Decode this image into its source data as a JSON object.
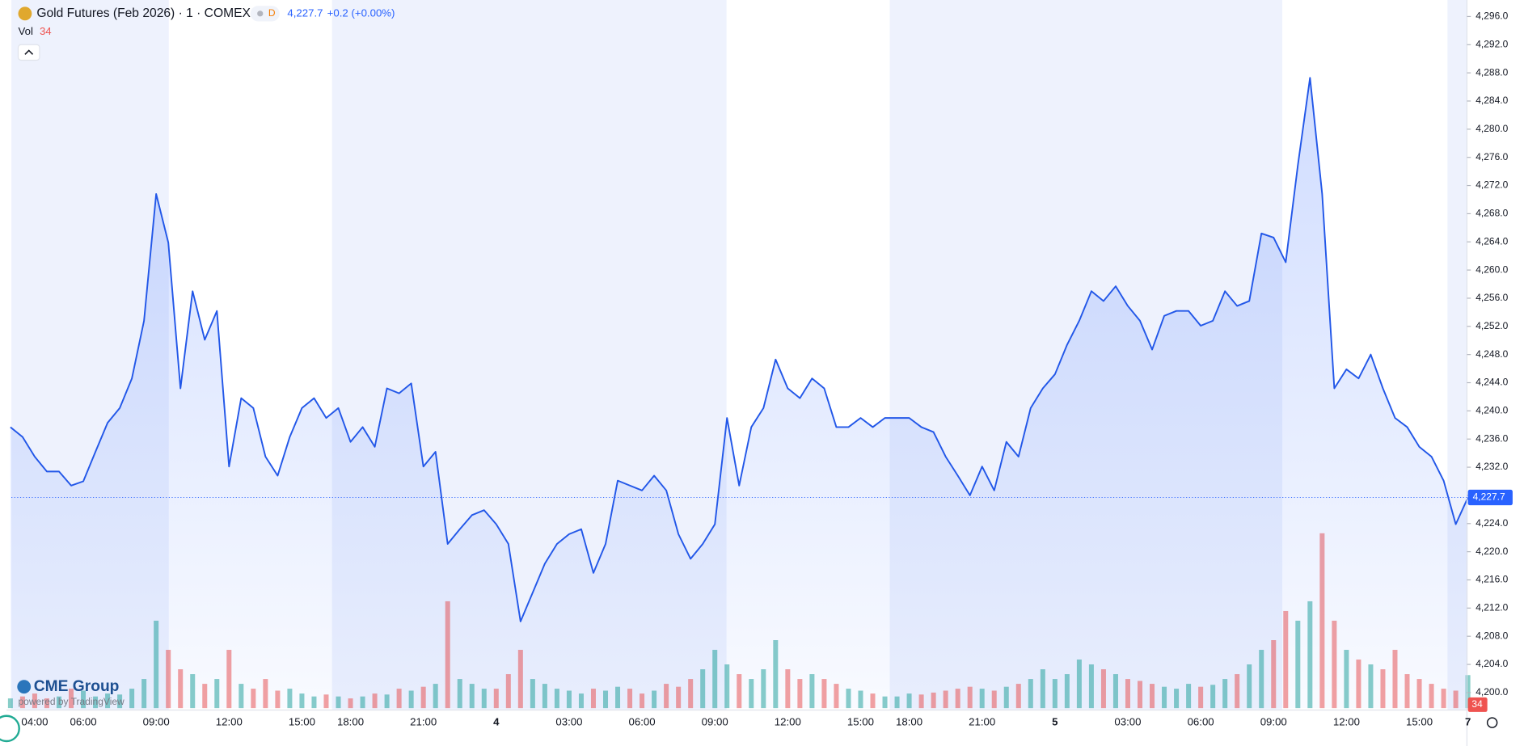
{
  "chart_data": {
    "type": "line",
    "title": "Gold Futures (Feb 2026) · 1 · COMEX",
    "badge": "D",
    "last_price": {
      "value": 4227.7,
      "label": "4,227.7"
    },
    "change": "+0.2 (+0.00%)",
    "volume_name": "Vol",
    "branding": {
      "logo": "CME Group",
      "powered": "powered by TradingView"
    },
    "color": "#2257e8",
    "volume_colors": {
      "up": "#26a69a",
      "down": "#ef5350"
    },
    "categories": [
      null,
      null,
      "04:00",
      null,
      null,
      null,
      "06:00",
      null,
      null,
      null,
      null,
      null,
      "09:00",
      null,
      null,
      null,
      null,
      null,
      "12:00",
      null,
      null,
      null,
      null,
      null,
      "15:00",
      null,
      null,
      null,
      "18:00",
      null,
      null,
      null,
      null,
      null,
      "21:00",
      null,
      null,
      null,
      null,
      null,
      "4",
      null,
      null,
      null,
      null,
      null,
      "03:00",
      null,
      null,
      null,
      null,
      null,
      "06:00",
      null,
      null,
      null,
      null,
      null,
      "09:00",
      null,
      null,
      null,
      null,
      null,
      "12:00",
      null,
      null,
      null,
      null,
      null,
      "15:00",
      null,
      null,
      null,
      "18:00",
      null,
      null,
      null,
      null,
      null,
      "21:00",
      null,
      null,
      null,
      null,
      null,
      "5",
      null,
      null,
      null,
      null,
      null,
      "03:00",
      null,
      null,
      null,
      null,
      null,
      "06:00",
      null,
      null,
      null,
      null,
      null,
      "09:00",
      null,
      null,
      null,
      null,
      null,
      "12:00",
      null,
      null,
      null,
      null,
      null,
      "15:00",
      null,
      null,
      null,
      "7"
    ],
    "values": [
      4237.7,
      4236.3,
      4233.5,
      4231.4,
      4231.4,
      4229.4,
      4230,
      4234.2,
      4238.3,
      4240.4,
      4244.6,
      4252.8,
      4270.8,
      4263.9,
      4243.2,
      4257,
      4250.1,
      4254.2,
      4232.1,
      4241.8,
      4240.4,
      4233.5,
      4230.8,
      4236.3,
      4240.4,
      4241.8,
      4239,
      4240.4,
      4235.6,
      4237.7,
      4234.9,
      4243.2,
      4242.5,
      4243.9,
      4232.1,
      4234.2,
      4221.1,
      4223.2,
      4225.2,
      4225.9,
      4223.9,
      4221.1,
      4210.1,
      4214.2,
      4218.3,
      4221.1,
      4222.5,
      4223.2,
      4217,
      4221.1,
      4230.1,
      4229.4,
      4228.7,
      4230.8,
      4228.7,
      4222.5,
      4219,
      4221.1,
      4223.9,
      4239,
      4229.4,
      4237.7,
      4240.4,
      4247.3,
      4243.2,
      4241.8,
      4244.6,
      4243.2,
      4237.7,
      4237.7,
      4239,
      4237.7,
      4239,
      4239,
      4239,
      4237.7,
      4237,
      4233.5,
      4230.8,
      4228,
      4232.1,
      4228.7,
      4235.6,
      4233.5,
      4240.4,
      4243.2,
      4245.2,
      4249.4,
      4252.8,
      4257,
      4255.6,
      4257.7,
      4254.9,
      4252.8,
      4248.7,
      4253.5,
      4254.2,
      4254.2,
      4252.1,
      4252.8,
      4257,
      4254.9,
      4255.6,
      4265.2,
      4264.6,
      4261.1,
      4274.9,
      4287.3,
      4270.8,
      4243.2,
      4245.9,
      4244.6,
      4248,
      4243.2,
      4239,
      4237.7,
      4234.9,
      4233.5,
      4230.1,
      4223.9,
      4227.7
    ],
    "volume": [
      10,
      12,
      15,
      10,
      12,
      20,
      18,
      12,
      15,
      14,
      20,
      30,
      90,
      60,
      40,
      35,
      25,
      30,
      60,
      25,
      20,
      30,
      18,
      20,
      15,
      12,
      14,
      12,
      10,
      12,
      15,
      14,
      20,
      18,
      22,
      25,
      110,
      30,
      25,
      20,
      20,
      35,
      60,
      30,
      25,
      20,
      18,
      15,
      20,
      18,
      22,
      20,
      15,
      18,
      25,
      22,
      30,
      40,
      60,
      45,
      35,
      30,
      40,
      70,
      40,
      30,
      35,
      30,
      25,
      20,
      18,
      15,
      12,
      12,
      15,
      14,
      16,
      18,
      20,
      22,
      20,
      18,
      22,
      25,
      30,
      40,
      30,
      35,
      50,
      45,
      40,
      35,
      30,
      28,
      25,
      22,
      20,
      25,
      22,
      24,
      30,
      35,
      45,
      60,
      70,
      100,
      90,
      110,
      180,
      90,
      60,
      50,
      45,
      40,
      60,
      35,
      30,
      25,
      20,
      18,
      34
    ],
    "ylim": [
      4198,
      4298
    ],
    "yticks": [
      {
        "value": 4200,
        "label": "4,200.0"
      },
      {
        "value": 4204,
        "label": "4,204.0"
      },
      {
        "value": 4208,
        "label": "4,208.0"
      },
      {
        "value": 4212,
        "label": "4,212.0"
      },
      {
        "value": 4216,
        "label": "4,216.0"
      },
      {
        "value": 4220,
        "label": "4,220.0"
      },
      {
        "value": 4224,
        "label": "4,224.0"
      },
      {
        "value": 4228,
        "label": "4,228.0"
      },
      {
        "value": 4232,
        "label": "4,232.0"
      },
      {
        "value": 4236,
        "label": "4,236.0"
      },
      {
        "value": 4240,
        "label": "4,240.0"
      },
      {
        "value": 4244,
        "label": "4,244.0"
      },
      {
        "value": 4248,
        "label": "4,248.0"
      },
      {
        "value": 4252,
        "label": "4,252.0"
      },
      {
        "value": 4256,
        "label": "4,256.0"
      },
      {
        "value": 4260,
        "label": "4,260.0"
      },
      {
        "value": 4264,
        "label": "4,264.0"
      },
      {
        "value": 4268,
        "label": "4,268.0"
      },
      {
        "value": 4272,
        "label": "4,272.0"
      },
      {
        "value": 4276,
        "label": "4,276.0"
      },
      {
        "value": 4280,
        "label": "4,280.0"
      },
      {
        "value": 4284,
        "label": "4,284.0"
      },
      {
        "value": 4288,
        "label": "4,288.0"
      },
      {
        "value": 4292,
        "label": "4,292.0"
      },
      {
        "value": 4296,
        "label": "4,296.0"
      }
    ]
  }
}
